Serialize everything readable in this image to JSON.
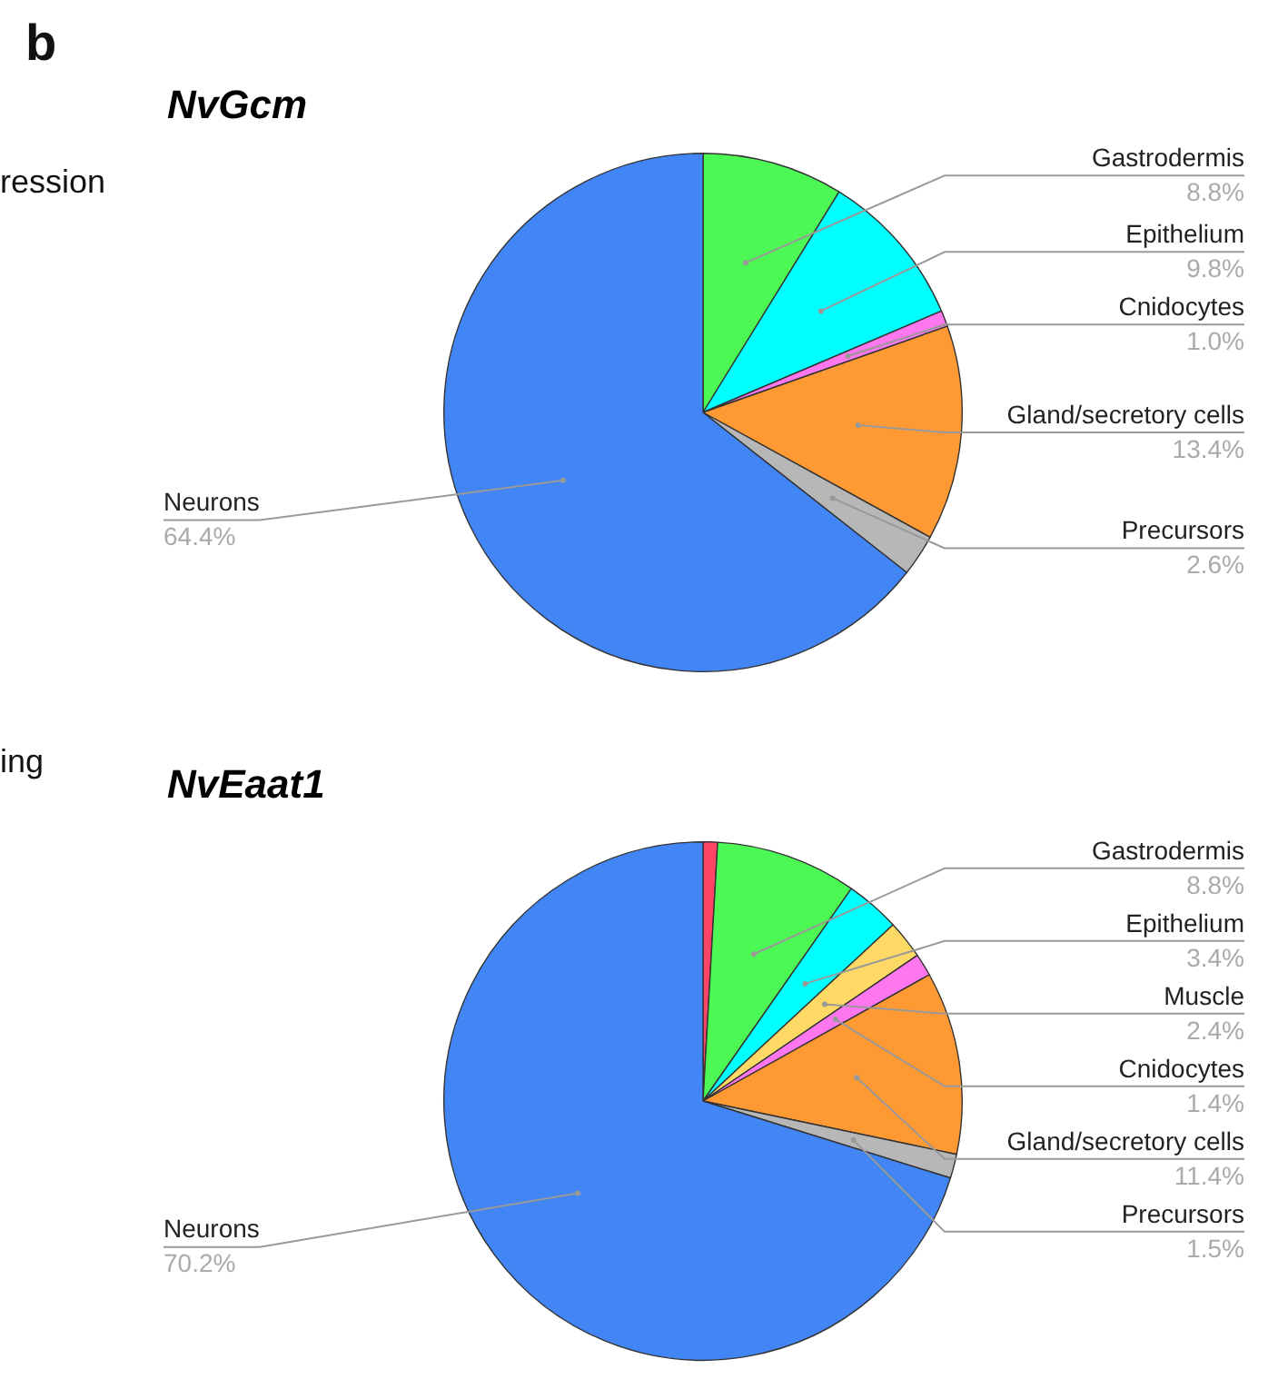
{
  "chart_data": [
    {
      "type": "pie",
      "title": "NvGcm",
      "annotations": [
        "b",
        "ression"
      ],
      "legend": false,
      "categories": [
        "Gastrodermis",
        "Epithelium",
        "Cnidocytes",
        "Gland/secretory cells",
        "Precursors",
        "Neurons"
      ],
      "values": [
        8.8,
        9.8,
        1.0,
        13.4,
        2.6,
        64.4
      ],
      "value_labels": [
        "8.8%",
        "9.8%",
        "1.0%",
        "13.4%",
        "2.6%",
        "64.4%"
      ],
      "colors": [
        "#4cf853",
        "#00ffff",
        "#ff77ee",
        "#ff9933",
        "#b7b7b7",
        "#4285f4"
      ]
    },
    {
      "type": "pie",
      "title": "NvEaat1",
      "annotations": [
        "ing"
      ],
      "legend": false,
      "categories": [
        null,
        "Gastrodermis",
        "Epithelium",
        "Muscle",
        "Cnidocytes",
        "Gland/secretory cells",
        "Precursors",
        "Neurons"
      ],
      "values": [
        0.9,
        8.8,
        3.4,
        2.4,
        1.4,
        11.4,
        1.5,
        70.2
      ],
      "value_labels": [
        null,
        "8.8%",
        "3.4%",
        "2.4%",
        "1.4%",
        "11.4%",
        "1.5%",
        "70.2%"
      ],
      "colors": [
        "#ff4466",
        "#4cf853",
        "#00ffff",
        "#ffd966",
        "#ff77ee",
        "#ff9933",
        "#b7b7b7",
        "#4285f4"
      ]
    }
  ]
}
